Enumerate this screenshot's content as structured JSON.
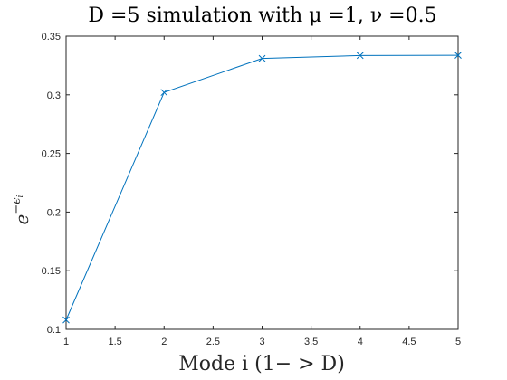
{
  "chart_data": {
    "type": "line",
    "title": "D =5 simulation with μ =1, ν =0.5",
    "xlabel": "Mode i (1− > D)",
    "ylabel": "e^−ϵ_i",
    "ylabel_base": "e",
    "ylabel_exp": "−ϵ",
    "ylabel_sub": "i",
    "xlim": [
      1,
      5
    ],
    "ylim": [
      0.1,
      0.35
    ],
    "xticks": [
      "1",
      "1.5",
      "2",
      "2.5",
      "3",
      "3.5",
      "4",
      "4.5",
      "5"
    ],
    "yticks": [
      "0.1",
      "0.15",
      "0.2",
      "0.25",
      "0.3",
      "0.35"
    ],
    "grid": false,
    "marker": "x",
    "series": [
      {
        "color": "#0072BD",
        "x": [
          1,
          2,
          3,
          4,
          5
        ],
        "y": [
          0.108,
          0.302,
          0.331,
          0.3335,
          0.3337
        ]
      }
    ]
  }
}
